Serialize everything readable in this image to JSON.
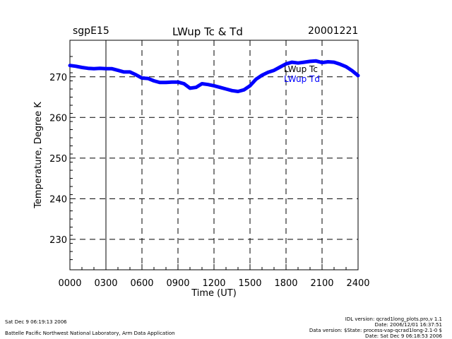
{
  "header": {
    "site": "sgpE15",
    "title": "LWup Tc & Td",
    "date": "20001221"
  },
  "footer": {
    "left_line1": "Sat Dec  9 06:19:13 2006",
    "left_line2": "Battelle Pacific Northwest National Laboratory, Arm Data Application",
    "right_line1": "IDL version: qcrad1long_plots.pro,v 1.1",
    "right_line2": "Date: 2006/12/01 16:37:51",
    "right_line3": "Data version: $State: process-vap-qcrad1long-2.1-0 $",
    "right_line4": "Date: Sat Dec  9 06:18:53 2006"
  },
  "colors": {
    "tc": "#000000",
    "td": "#0000ff",
    "grid": "#000000"
  },
  "chart_data": {
    "type": "line",
    "title": "LWup Tc & Td",
    "xlabel": "Time (UT)",
    "ylabel": "Temperature, Degree K",
    "xlim": [
      0,
      24
    ],
    "ylim": [
      222.5,
      279
    ],
    "x_ticks": [
      0,
      3,
      6,
      9,
      12,
      15,
      18,
      21,
      24
    ],
    "x_tick_labels": [
      "0000",
      "0300",
      "0600",
      "0900",
      "1200",
      "1500",
      "1800",
      "2100",
      "2400"
    ],
    "y_ticks": [
      230,
      240,
      250,
      260,
      270
    ],
    "y_tick_labels": [
      "230",
      "240",
      "250",
      "260",
      "270"
    ],
    "grid": true,
    "legend_position": "top-right",
    "series": [
      {
        "name": "LWup Tc",
        "color": "#000000",
        "x": [
          0,
          0.5,
          1,
          1.5,
          2,
          2.5,
          3,
          3.5,
          4,
          4.5,
          5,
          5.5,
          6,
          6.5,
          7,
          7.5,
          8,
          8.5,
          9,
          9.5,
          10,
          10.5,
          11,
          11.5,
          12,
          12.5,
          13,
          13.5,
          14,
          14.5,
          15,
          15.5,
          16,
          16.5,
          17,
          17.5,
          18,
          18.5,
          19,
          19.5,
          20,
          20.5,
          21,
          21.5,
          22,
          22.5,
          23,
          23.5,
          24
        ],
        "y": [
          272.8,
          272.6,
          272.3,
          272.1,
          272.0,
          272.1,
          272.0,
          272.0,
          271.6,
          271.2,
          271.2,
          270.5,
          269.7,
          269.6,
          269.0,
          268.6,
          268.6,
          268.7,
          268.7,
          268.3,
          267.2,
          267.4,
          268.3,
          268.1,
          267.8,
          267.4,
          267.0,
          266.6,
          266.4,
          266.8,
          267.8,
          269.4,
          270.4,
          271.1,
          271.6,
          272.4,
          273.2,
          273.6,
          273.4,
          273.6,
          273.8,
          273.9,
          273.5,
          273.7,
          273.6,
          273.1,
          272.5,
          271.5,
          270.3
        ]
      },
      {
        "name": "LWup Td",
        "color": "#0000ff",
        "x": [
          0,
          0.5,
          1,
          1.5,
          2,
          2.5,
          3,
          3.5,
          4,
          4.5,
          5,
          5.5,
          6,
          6.5,
          7,
          7.5,
          8,
          8.5,
          9,
          9.5,
          10,
          10.5,
          11,
          11.5,
          12,
          12.5,
          13,
          13.5,
          14,
          14.5,
          15,
          15.5,
          16,
          16.5,
          17,
          17.5,
          18,
          18.5,
          19,
          19.5,
          20,
          20.5,
          21,
          21.5,
          22,
          22.5,
          23,
          23.5,
          24
        ],
        "y": [
          272.8,
          272.6,
          272.3,
          272.1,
          272.0,
          272.1,
          272.0,
          272.0,
          271.6,
          271.2,
          271.2,
          270.5,
          269.7,
          269.6,
          269.0,
          268.6,
          268.6,
          268.7,
          268.7,
          268.3,
          267.2,
          267.4,
          268.3,
          268.1,
          267.8,
          267.4,
          267.0,
          266.6,
          266.4,
          266.8,
          267.8,
          269.4,
          270.4,
          271.1,
          271.6,
          272.4,
          273.2,
          273.6,
          273.4,
          273.6,
          273.8,
          273.9,
          273.5,
          273.7,
          273.6,
          273.1,
          272.5,
          271.5,
          270.3
        ]
      }
    ]
  }
}
